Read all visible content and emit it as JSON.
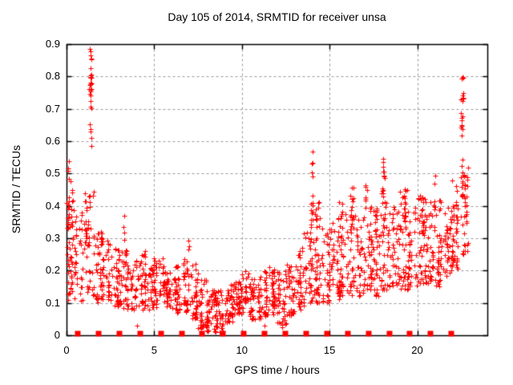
{
  "chart_data": {
    "type": "scatter",
    "title": "Day 105 of 2014, SRMTID for receiver unsa",
    "xlabel": "GPS time / hours",
    "ylabel": "SRMTID / TECUs",
    "xlim": [
      0,
      24
    ],
    "ylim": [
      0,
      0.9
    ],
    "xticks": [
      0,
      5,
      10,
      15,
      20
    ],
    "yticks": [
      0,
      0.1,
      0.2,
      0.3,
      0.4,
      0.5,
      0.6,
      0.7,
      0.8,
      0.9
    ],
    "grid": "dashed-gray-at-major-ticks",
    "legend": "none",
    "marker": "plus-cross",
    "colors": {
      "points": "#ff0000",
      "grid": "#999999",
      "axis": "#000000",
      "background": "#ffffff",
      "text": "#000000"
    },
    "series": [
      {
        "name": "srmtid-samples",
        "style": "scatter-plus",
        "bands_format": [
          "hour_start",
          "hour_end",
          "value_min",
          "value_max",
          "count"
        ],
        "bands": [
          [
            0.0,
            0.5,
            0.1,
            0.5,
            38
          ],
          [
            0.5,
            1.0,
            0.1,
            0.38,
            34
          ],
          [
            1.0,
            1.5,
            0.12,
            0.45,
            36
          ],
          [
            1.5,
            2.0,
            0.1,
            0.32,
            38
          ],
          [
            2.0,
            2.5,
            0.1,
            0.3,
            38
          ],
          [
            2.5,
            3.0,
            0.09,
            0.28,
            36
          ],
          [
            3.0,
            3.5,
            0.08,
            0.27,
            38
          ],
          [
            3.5,
            4.0,
            0.08,
            0.24,
            34
          ],
          [
            4.0,
            4.5,
            0.08,
            0.26,
            38
          ],
          [
            4.5,
            5.0,
            0.08,
            0.22,
            34
          ],
          [
            5.0,
            5.5,
            0.08,
            0.24,
            38
          ],
          [
            5.5,
            6.0,
            0.08,
            0.22,
            34
          ],
          [
            6.0,
            6.5,
            0.07,
            0.22,
            38
          ],
          [
            6.5,
            7.0,
            0.07,
            0.24,
            34
          ],
          [
            7.0,
            7.5,
            0.05,
            0.22,
            38
          ],
          [
            7.5,
            8.0,
            0.02,
            0.19,
            38
          ],
          [
            8.0,
            8.5,
            0.01,
            0.15,
            40
          ],
          [
            8.5,
            9.0,
            0.01,
            0.14,
            40
          ],
          [
            9.0,
            9.5,
            0.04,
            0.16,
            38
          ],
          [
            9.5,
            10.0,
            0.05,
            0.18,
            38
          ],
          [
            10.0,
            10.5,
            0.06,
            0.2,
            38
          ],
          [
            10.5,
            11.0,
            0.05,
            0.18,
            38
          ],
          [
            11.0,
            11.5,
            0.05,
            0.2,
            38
          ],
          [
            11.5,
            12.0,
            0.06,
            0.22,
            38
          ],
          [
            12.0,
            12.5,
            0.03,
            0.2,
            38
          ],
          [
            12.5,
            13.0,
            0.06,
            0.22,
            38
          ],
          [
            13.0,
            13.5,
            0.08,
            0.28,
            38
          ],
          [
            13.5,
            14.0,
            0.1,
            0.35,
            36
          ],
          [
            14.0,
            14.5,
            0.1,
            0.42,
            42
          ],
          [
            14.5,
            15.0,
            0.1,
            0.35,
            38
          ],
          [
            15.0,
            15.5,
            0.1,
            0.38,
            38
          ],
          [
            15.5,
            16.0,
            0.12,
            0.42,
            38
          ],
          [
            16.0,
            16.5,
            0.12,
            0.44,
            40
          ],
          [
            16.5,
            17.0,
            0.12,
            0.38,
            38
          ],
          [
            17.0,
            17.5,
            0.14,
            0.44,
            38
          ],
          [
            17.5,
            18.0,
            0.12,
            0.4,
            38
          ],
          [
            18.0,
            18.5,
            0.14,
            0.46,
            40
          ],
          [
            18.5,
            19.0,
            0.15,
            0.4,
            38
          ],
          [
            19.0,
            19.5,
            0.14,
            0.46,
            38
          ],
          [
            19.5,
            20.0,
            0.15,
            0.4,
            38
          ],
          [
            20.0,
            20.5,
            0.16,
            0.44,
            40
          ],
          [
            20.5,
            21.0,
            0.16,
            0.42,
            38
          ],
          [
            21.0,
            21.5,
            0.15,
            0.45,
            38
          ],
          [
            21.5,
            22.0,
            0.18,
            0.42,
            38
          ],
          [
            22.0,
            22.5,
            0.2,
            0.48,
            40
          ],
          [
            22.5,
            22.9,
            0.25,
            0.52,
            32
          ]
        ],
        "spike_columns_format": [
          "hour",
          "value_min",
          "value_max",
          "count"
        ],
        "spike_columns": [
          [
            0.1,
            0.3,
            0.55,
            16
          ],
          [
            0.35,
            0.28,
            0.46,
            8
          ],
          [
            1.1,
            0.3,
            0.5,
            10
          ],
          [
            1.35,
            0.55,
            0.9,
            22
          ],
          [
            1.38,
            0.74,
            0.82,
            10
          ],
          [
            3.3,
            0.28,
            0.38,
            4
          ],
          [
            7.0,
            0.24,
            0.31,
            3
          ],
          [
            14.0,
            0.3,
            0.57,
            16
          ],
          [
            16.3,
            0.34,
            0.46,
            7
          ],
          [
            17.1,
            0.34,
            0.47,
            7
          ],
          [
            18.1,
            0.33,
            0.56,
            14
          ],
          [
            19.3,
            0.34,
            0.47,
            7
          ],
          [
            20.3,
            0.32,
            0.46,
            7
          ],
          [
            21.0,
            0.32,
            0.5,
            8
          ],
          [
            22.55,
            0.45,
            0.8,
            18
          ],
          [
            22.6,
            0.72,
            0.8,
            8
          ],
          [
            22.7,
            0.35,
            0.55,
            9
          ]
        ],
        "isolated_points": [
          [
            4.0,
            0.03
          ],
          [
            11.3,
            0.03
          ],
          [
            12.3,
            0.025
          ]
        ]
      },
      {
        "name": "epoch-markers",
        "style": "filled-square",
        "value": 0,
        "hours": [
          0.59,
          1.78,
          2.96,
          4.15,
          5.33,
          6.52,
          7.7,
          8.88,
          10.07,
          11.25,
          12.44,
          13.62,
          14.81,
          15.99,
          17.17,
          18.36,
          19.54,
          20.73,
          21.91
        ]
      }
    ]
  }
}
